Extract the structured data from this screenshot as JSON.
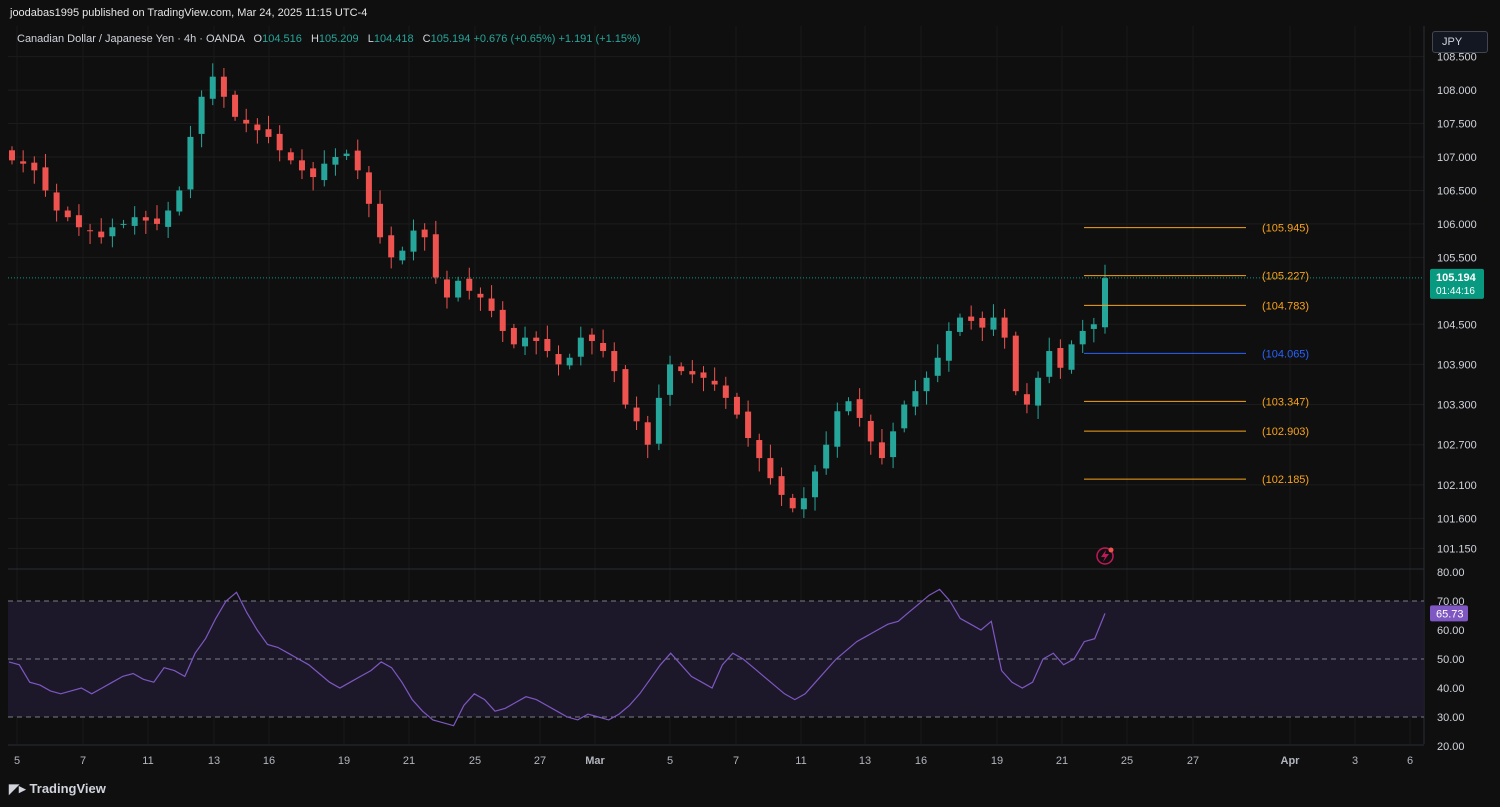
{
  "header": {
    "publisher": "joodabas1995 published on TradingView.com, Mar 24, 2025 11:15 UTC-4",
    "symbol": "Canadian Dollar / Japanese Yen · 4h · OANDA",
    "open_label": "O",
    "open": "104.516",
    "high_label": "H",
    "high": "105.209",
    "low_label": "L",
    "low": "104.418",
    "close_label": "C",
    "close": "105.194",
    "change": "+0.676 (+0.65%)",
    "change2": "+1.191 (+1.15%)"
  },
  "currency_button": "JPY",
  "footer": {
    "brand": "TradingView"
  },
  "colors": {
    "bull": "#26a69a",
    "bear": "#ef5350",
    "rsi_line": "#7e57c2",
    "rsi_band": "#1e1a2e",
    "fib": "#f7a21b",
    "fib_mid": "#2962ff",
    "price_label": "#089981",
    "rsi_label": "#7e57c2"
  },
  "chart_data": [
    {
      "type": "candlestick",
      "title": "Canadian Dollar / Japanese Yen",
      "timeframe": "4h",
      "ylim": [
        100.85,
        108.95
      ],
      "price_ticks": [
        "108.500",
        "108.000",
        "107.500",
        "107.000",
        "106.500",
        "106.000",
        "105.500",
        "104.500",
        "103.900",
        "103.300",
        "102.700",
        "102.100",
        "101.600",
        "101.150"
      ],
      "x_ticks": [
        "5",
        "7",
        "11",
        "13",
        "16",
        "19",
        "21",
        "25",
        "27",
        "Mar",
        "5",
        "7",
        "11",
        "13",
        "16",
        "19",
        "21",
        "25",
        "27",
        "Apr",
        "3",
        "6"
      ],
      "current_price": "105.194",
      "countdown": "01:44:16",
      "series_close_approx": [
        106.95,
        106.9,
        106.8,
        106.5,
        106.2,
        106.1,
        105.95,
        105.9,
        105.8,
        105.95,
        106.0,
        106.1,
        106.05,
        106.0,
        106.2,
        106.5,
        107.3,
        107.9,
        108.2,
        107.9,
        107.6,
        107.5,
        107.4,
        107.3,
        107.1,
        106.95,
        106.8,
        106.7,
        106.9,
        107.0,
        107.05,
        106.8,
        106.3,
        105.8,
        105.5,
        105.6,
        105.9,
        105.8,
        105.2,
        104.9,
        105.15,
        105.0,
        104.9,
        104.7,
        104.4,
        104.2,
        104.3,
        104.25,
        104.1,
        103.9,
        104.0,
        104.3,
        104.25,
        104.1,
        103.8,
        103.3,
        103.05,
        102.7,
        103.4,
        103.9,
        103.8,
        103.75,
        103.7,
        103.6,
        103.4,
        103.15,
        102.8,
        102.5,
        102.2,
        101.95,
        101.75,
        101.9,
        102.3,
        102.7,
        103.2,
        103.35,
        103.1,
        102.75,
        102.5,
        102.9,
        103.3,
        103.5,
        103.7,
        104.0,
        104.4,
        104.6,
        104.55,
        104.45,
        104.6,
        104.3,
        103.5,
        103.3,
        103.7,
        104.1,
        103.85,
        104.2,
        104.4,
        104.5,
        105.19
      ],
      "fib_levels": [
        {
          "label": "(105.945)",
          "value": 105.945
        },
        {
          "label": "(105.227)",
          "value": 105.227
        },
        {
          "label": "(104.783)",
          "value": 104.783
        },
        {
          "label": "(104.065)",
          "value": 104.065
        },
        {
          "label": "(103.347)",
          "value": 103.347
        },
        {
          "label": "(102.903)",
          "value": 102.903
        },
        {
          "label": "(102.185)",
          "value": 102.185
        }
      ]
    },
    {
      "type": "line",
      "ylim": [
        20,
        80
      ],
      "rsi_ticks": [
        "80.00",
        "70.00",
        "60.00",
        "50.00",
        "40.00",
        "30.00",
        "20.00"
      ],
      "bands": [
        30,
        50,
        70
      ],
      "current_value": "65.73",
      "values": [
        49,
        48,
        42,
        41,
        39,
        38,
        39,
        40,
        38,
        40,
        42,
        44,
        45,
        43,
        42,
        47,
        46,
        44,
        52,
        57,
        64,
        70,
        73,
        66,
        60,
        55,
        54,
        52,
        50,
        48,
        45,
        42,
        40,
        42,
        44,
        46,
        49,
        47,
        42,
        36,
        32,
        29,
        28,
        27,
        34,
        38,
        36,
        32,
        33,
        35,
        37,
        36,
        34,
        32,
        30,
        29,
        31,
        30,
        29,
        31,
        34,
        38,
        43,
        48,
        52,
        48,
        44,
        42,
        40,
        48,
        52,
        50,
        47,
        44,
        41,
        38,
        36,
        38,
        42,
        46,
        50,
        53,
        56,
        58,
        60,
        62,
        63,
        66,
        69,
        72,
        74,
        70,
        64,
        62,
        60,
        63,
        46,
        42,
        40,
        42,
        50,
        52,
        48,
        50,
        56,
        57,
        65.73
      ]
    }
  ]
}
